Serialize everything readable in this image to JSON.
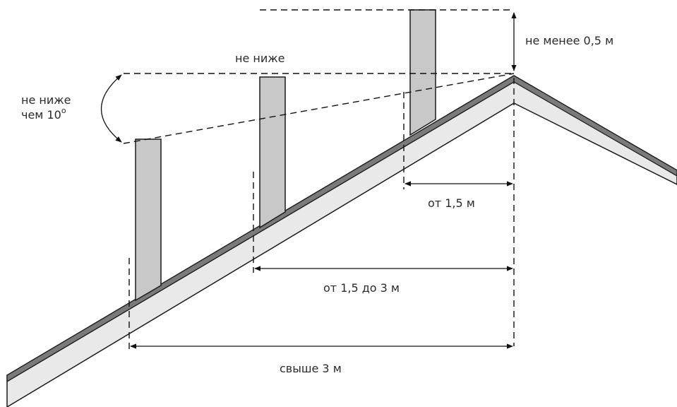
{
  "labels": {
    "top_clearance": "не менее 0,5 м",
    "not_lower_top": "не ниже",
    "angle_line1": "не ниже",
    "angle_line2": "чем 10",
    "angle_degree": "o",
    "dist_near": "от 1,5 м",
    "dist_mid": "от 1,5 до 3 м",
    "dist_far": "свыше 3 м"
  },
  "colors": {
    "roof_fill": "#e9e9e9",
    "roof_top_strip": "#7a7a7a",
    "pipe_fill": "#c8c8c8",
    "line": "#111111"
  }
}
